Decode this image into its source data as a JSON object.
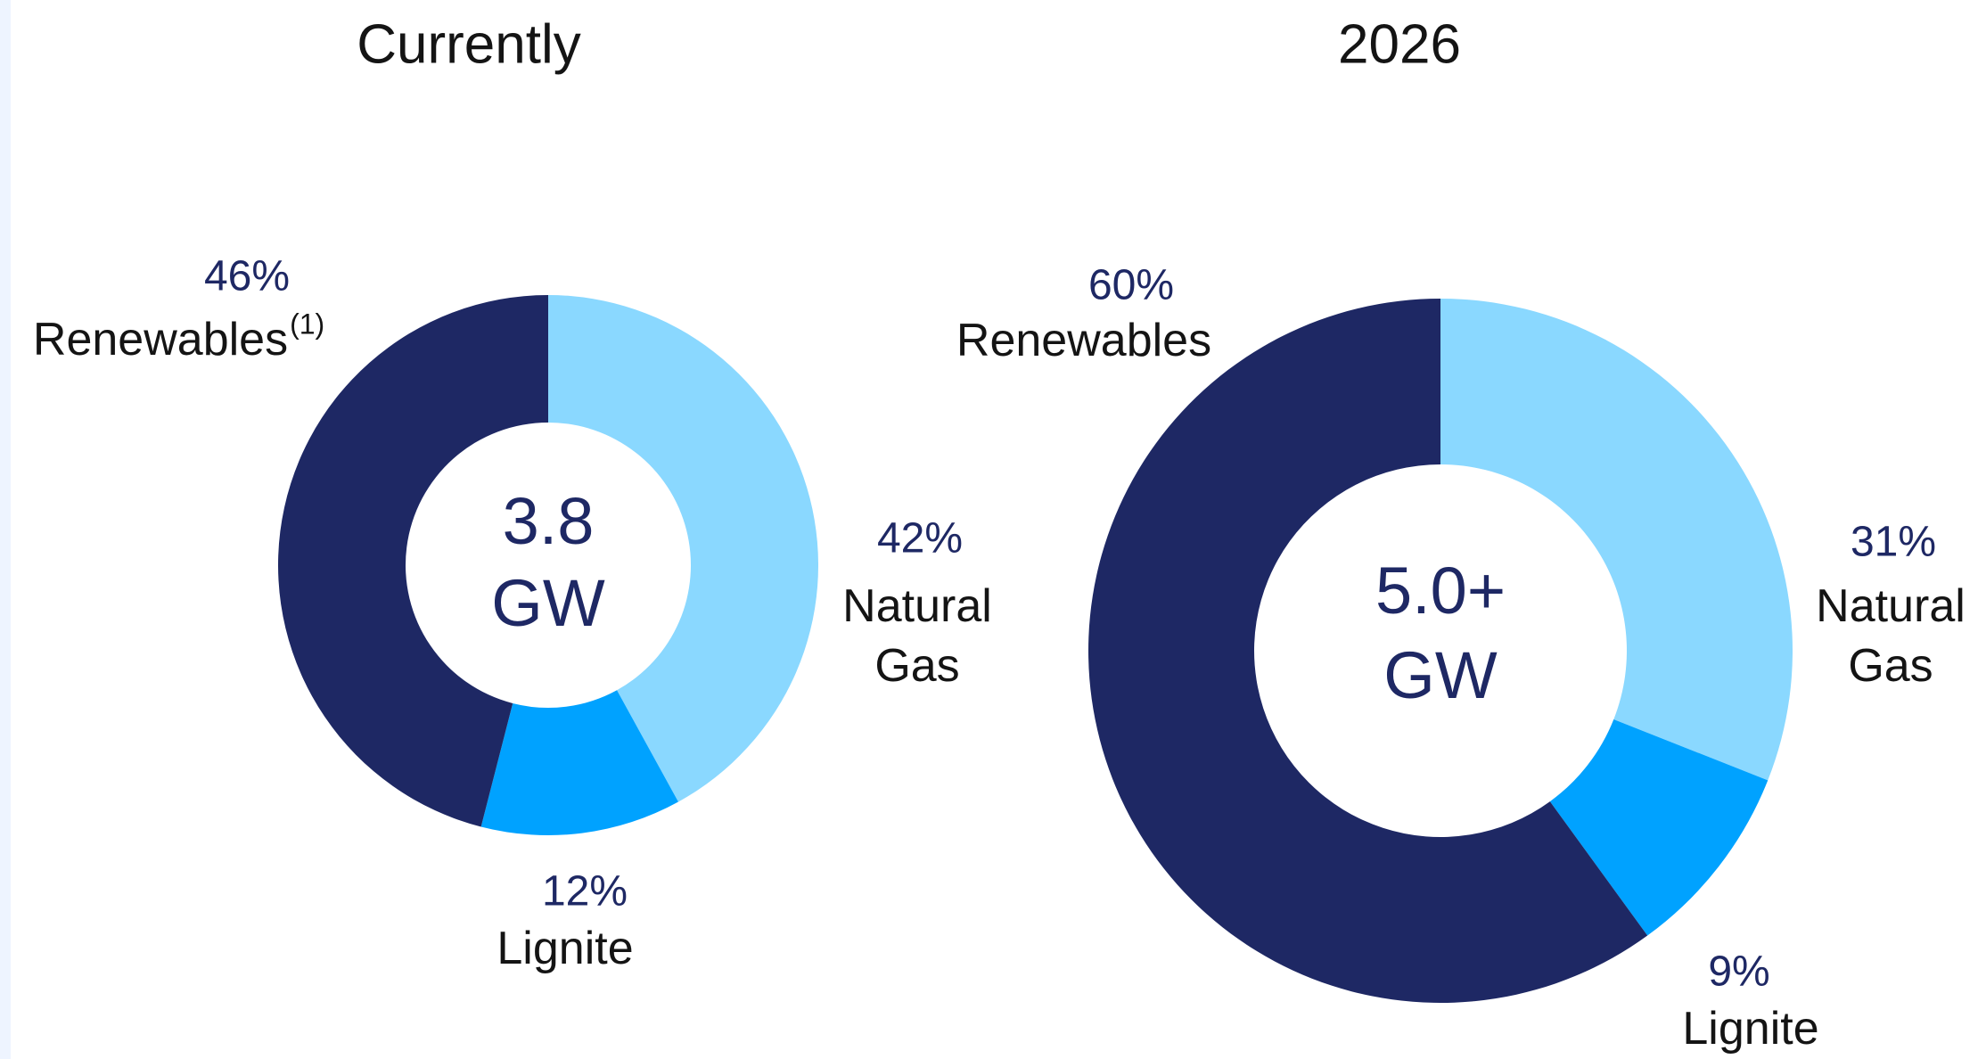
{
  "chart_data": [
    {
      "type": "donut",
      "title": "Currently",
      "center_label": "3.8 GW",
      "categories": [
        "Natural Gas",
        "Lignite",
        "Renewables"
      ],
      "values": [
        42,
        12,
        46
      ],
      "value_labels": [
        "42%",
        "12%",
        "46%"
      ],
      "colors": [
        "#8ad8ff",
        "#00a2ff",
        "#1e2864"
      ],
      "renewables_note": "(1)"
    },
    {
      "type": "donut",
      "title": "2026",
      "center_label": "5.0+ GW",
      "categories": [
        "Natural Gas",
        "Lignite",
        "Renewables"
      ],
      "values": [
        31,
        9,
        60
      ],
      "value_labels": [
        "31%",
        "9%",
        "60%"
      ],
      "colors": [
        "#8ad8ff",
        "#00a2ff",
        "#1e2864"
      ]
    }
  ]
}
